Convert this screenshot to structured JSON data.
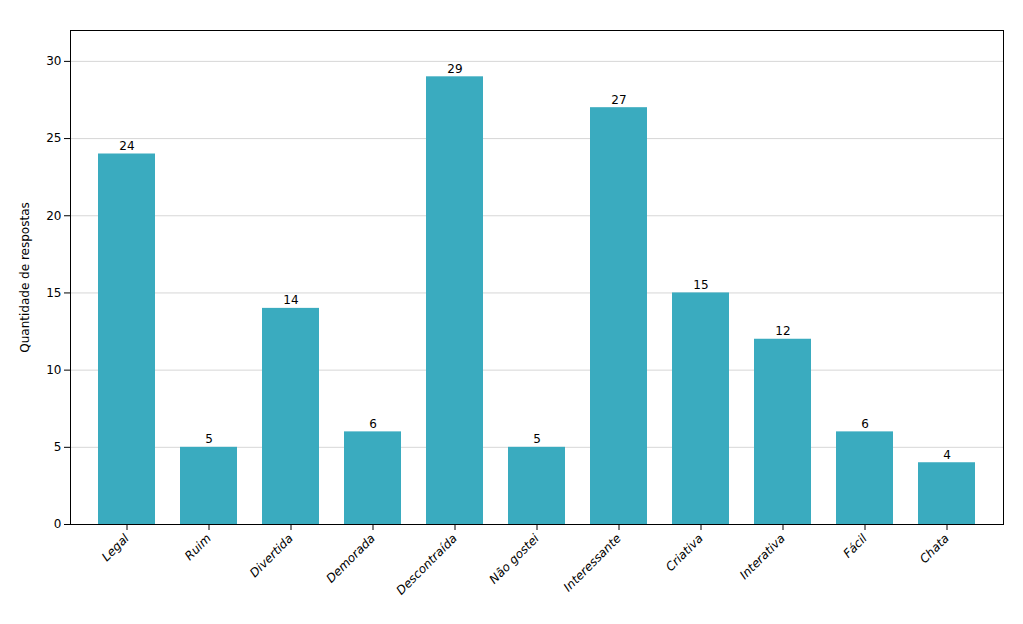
{
  "chart_data": {
    "type": "bar",
    "categories": [
      "Legal",
      "Ruim",
      "Divertida",
      "Demorada",
      "Descontraída",
      "Não gostei",
      "Interessante",
      "Criativa",
      "Interativa",
      "Fácil",
      "Chata"
    ],
    "values": [
      24,
      5,
      14,
      6,
      29,
      5,
      27,
      15,
      12,
      6,
      4
    ],
    "color": "#3aabbf",
    "ylabel": "Quantidade de respostas",
    "ylim": [
      0,
      32
    ],
    "yticks": [
      0,
      5,
      10,
      15,
      20,
      25,
      30
    ],
    "grid": true,
    "data_labels": true
  }
}
